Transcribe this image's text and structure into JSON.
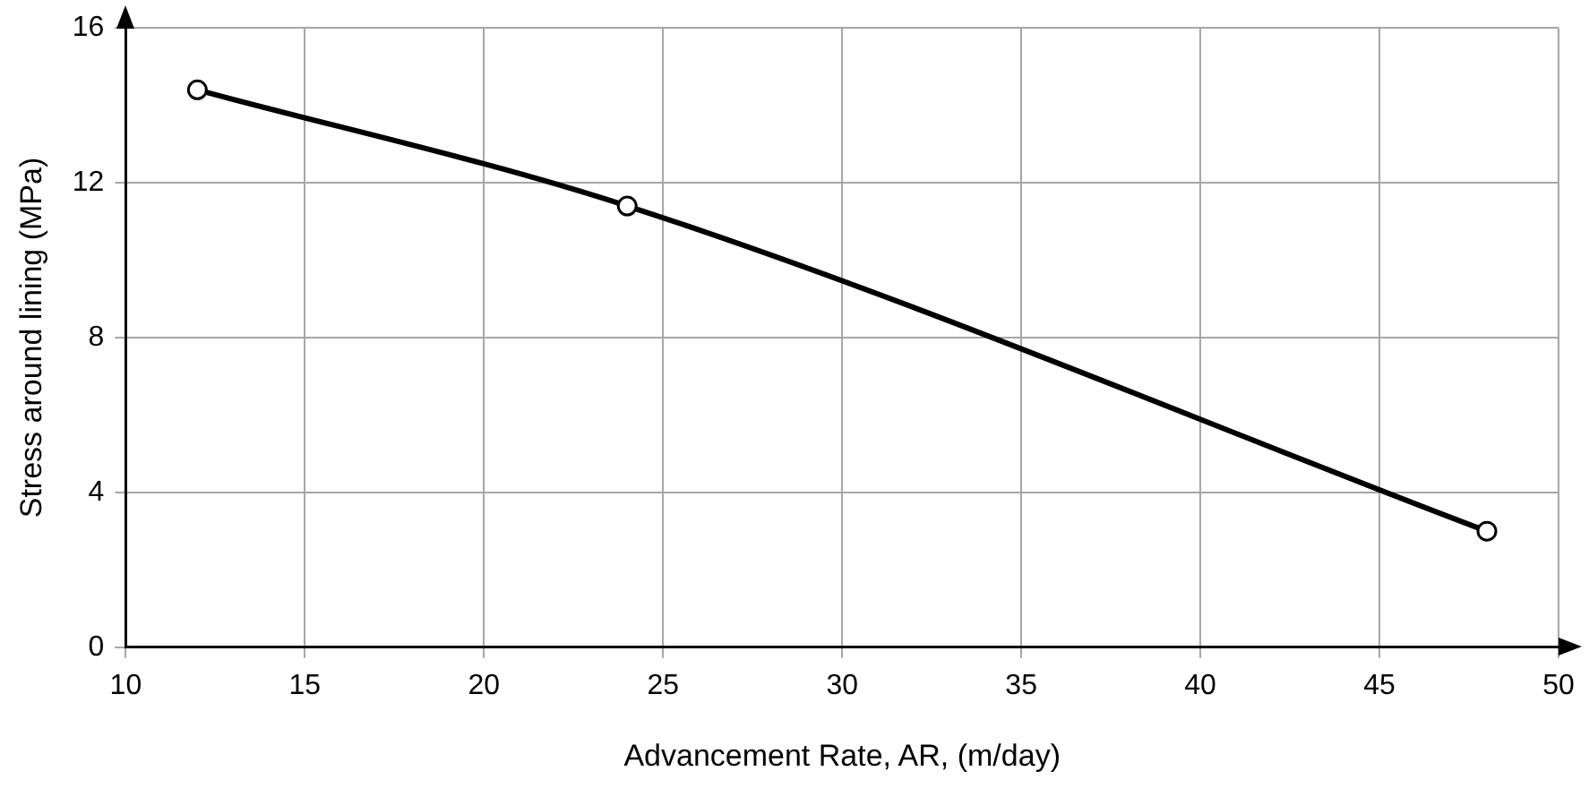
{
  "chart_data": {
    "type": "line",
    "xlabel": "Advancement Rate, AR, (m/day)",
    "ylabel": "Stress around lining (MPa)",
    "x": [
      12,
      24,
      48
    ],
    "series": [
      {
        "color": "#000000",
        "values": [
          14.4,
          11.4,
          3.0
        ]
      }
    ],
    "xlim": [
      10,
      50
    ],
    "xticks": [
      10,
      15,
      20,
      25,
      30,
      35,
      40,
      45,
      50
    ],
    "ylim": [
      0,
      16
    ],
    "yticks": [
      0,
      4,
      8,
      12,
      16
    ],
    "grid": true,
    "legend": false,
    "marker": "circle",
    "line_style": "solid"
  }
}
